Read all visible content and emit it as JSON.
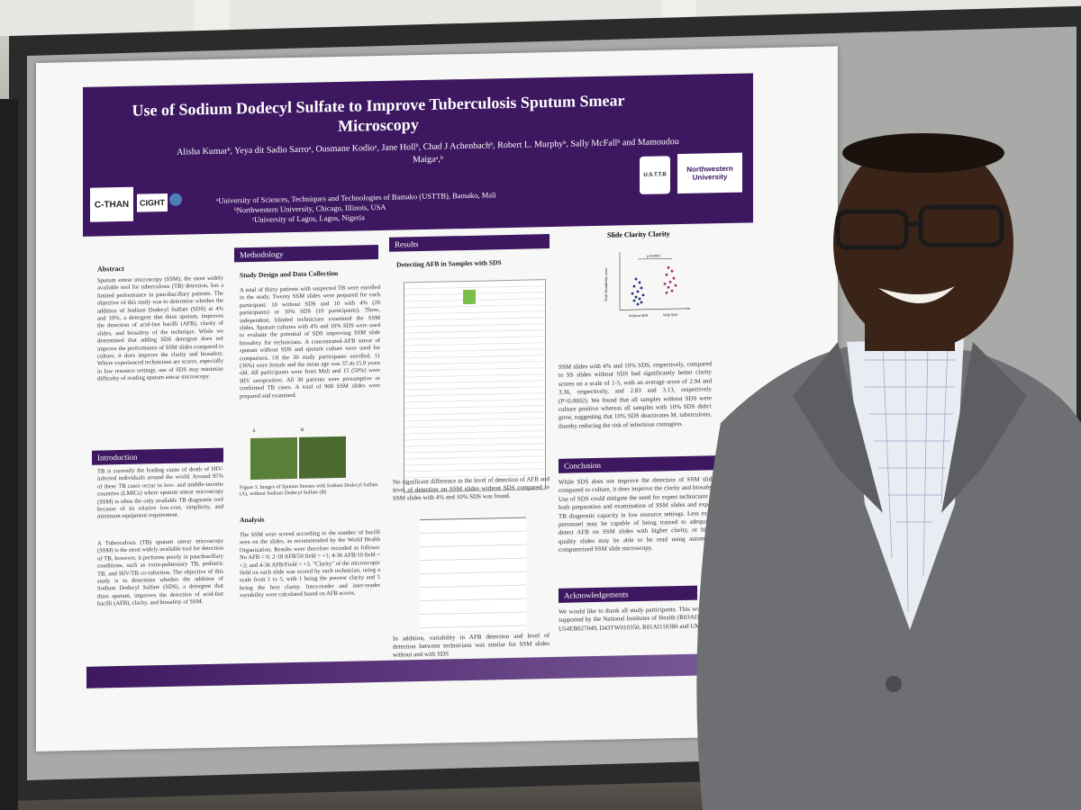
{
  "poster": {
    "title": "Use of Sodium Dodecyl Sulfate to Improve Tuberculosis Sputum Smear Microscopy",
    "authors": "Alisha Kumarᵇ, Yeya dit Sadio Sarroᵃ, Ousmane Kodioᵃ, Jane Hollᵇ, Chad J Achenbachᵇ, Robert L. Murphyᵇ, Sally McFallᵇ and Mamoudou Maigaᵃ,ᵇ",
    "affiliations": [
      "ᵃUniversity of Sciences, Techniques and Technologies of Bamako (USTTB), Bamako, Mali",
      "ᵇNorthwestern University, Chicago, Illinois, USA",
      "ᶜUniversity of Lagos, Lagos, Nigeria"
    ],
    "logos": {
      "cthan": "C-THAN",
      "cight": "CIGHT",
      "usttb": "U.S.T.T.B",
      "northwestern": "Northwestern University"
    },
    "abstract": {
      "heading": "Abstract",
      "text": "Sputum smear microscopy (SSM), the most widely available tool for tuberculosis (TB) detection, has a limited performance in paucibacillary patients. The objective of this study was to determine whether the addition of Sodium Dodecyl Sulfate (SDS) at 4% and 10%, a detergent that thins sputum, improves the detection of acid-fast bacilli (AFB), clarity of slides, and biosafety of the technique. While we determined that adding SDS detergent does not improve the performance of SSM slides compared to culture, it does improve the clarity and biosafety. Where experienced technicians are scarce, especially in low resource settings, use of SDS may minimize difficulty of reading sputum smear microscopy."
    },
    "introduction": {
      "heading": "Introduction",
      "text1": "TB is currently the leading cause of death of HIV-infected individuals around the world. Around 95% of these TB cases occur in low- and middle-income countries (LMICs) where sputum smear microscopy (SSM) is often the only available TB diagnostic tool because of its relative low-cost, simplicity, and minimum equipment requirement.",
      "text2": "A Tuberculosis (TB) sputum smear microscopy (SSM) is the most widely available tool for detection of TB, however, it performs poorly in paucibacillary conditions, such as extra-pulmonary TB, pediatric TB, and HIV/TB co-infection. The objective of this study is to determine whether the addition of Sodium Dodecyl Sulfate (SDS), a detergent that thins sputum, improves the detection of acid-fast bacilli (AFB), clarity, and biosafety of SSM."
    },
    "methodology": {
      "heading": "Methodology",
      "subheading": "Study Design and Data Collection",
      "text": "A total of thirty patients with suspected TB were enrolled in the study. Twenty SSM slides were prepared for each participant: 10 without SDS and 10 with 4% (20 participants) or 10% SDS (10 participants). Three, independent, blinded technicians examined the SSM slides. Sputum cultures with 4% and 10% SDS were used to evaluate the potential of SDS improving SSM slide biosafety for technicians. A concentrated-AFB smear of sputum without SDS and sputum culture were used for comparison. Of the 30 study participants enrolled, 11 (36%) were female and the mean age was 37.4±15.9 years old. All participants were from Mali and 15 (50%) were HIV seropositive. All 30 patients were presumptive or confirmed TB cases. A total of 900 SSM slides were prepared and examined.",
      "figure_labels": [
        "A",
        "B"
      ],
      "figure_caption": "Figure 3. Images of Sputum Smears with Sodium Dodecyl Sulfate (A), without Sodium Dodecyl Sulfate (B)",
      "analysis_heading": "Analysis",
      "analysis_text": "The SSM were scored according to the number of bacilli seen on the slides, as recommended by the World Health Organization. Results were therefore recorded as follows: No AFB = 0; 2-18 AFB/50 field = +1; 4-36 AFB/10 field = +2; and 4-36 AFB/Field = +3. \"Clarity\" of the microscopic field on each slide was scored by each technician, using a scale from 1 to 5, with 1 being the poorest clarity and 5 being the best clarity. Intra-reader and inter-reader variability were calculated based on AFB scores."
    },
    "results": {
      "heading": "Results",
      "subheading": "Detecting AFB in Samples with SDS",
      "text1": "No significant difference in the level of detection of AFB and level of detection on SSM slides without SDS compared to SSM slides with 4% and 10% SDS was found.",
      "text2": "In addition, variability in AFB detection and level of detection between technicians was similar for SSM slides without and with SDS"
    },
    "clarity": {
      "heading": "Slide Clarity Clarity",
      "plot_p": "p<0.0002",
      "plot_ylabel": "Slide Readability score",
      "plot_groups": [
        "Without SDS",
        "With SDS"
      ],
      "text": "SSM slides with 4% and 10% SDS, respectively, compared to SS slides without SDS had significantly better clarity scores on a scale of 1-5, with an average score of 2.94 and 3.36, respectively, and 2.83 and 3.13, respectively (P=0.0002). We found that all samples without SDS were culture positive whereas all samples with 10% SDS didn't grow, suggesting that 10% SDS deactivates M. tuberculosis, thereby reducing the risk of infectious contagion."
    },
    "conclusion": {
      "heading": "Conclusion",
      "text": "While SDS does not improve the detection of SSM slides compared to culture, it does improve the clarity and biosafety. Use of SDS could mitigate the need for expert technicians for both preparation and examination of SSM slides and expand TB diagnostic capacity in low resource settings. Less expert personnel may be capable of being trained to adequately detect AFB on SSM slides with higher clarity, or higher quality slides may be able to be read using automated, computerized SSM slide microscopy."
    },
    "acknowledgements": {
      "heading": "Acknowledgements",
      "text": "We would like to thank all study participants. This work was supported by the National Institutes of Health (R03AI137674, U54EB027049, D43TW010350, R01AI110386 and UM1AI"
    }
  },
  "colors": {
    "poster_purple": "#3d1760",
    "poster_bg": "#f7f7f6",
    "board": "#2b2b2b",
    "shirt": "#e9ecf3",
    "jacket": "#6e6f72",
    "skin": "#3a2418"
  }
}
